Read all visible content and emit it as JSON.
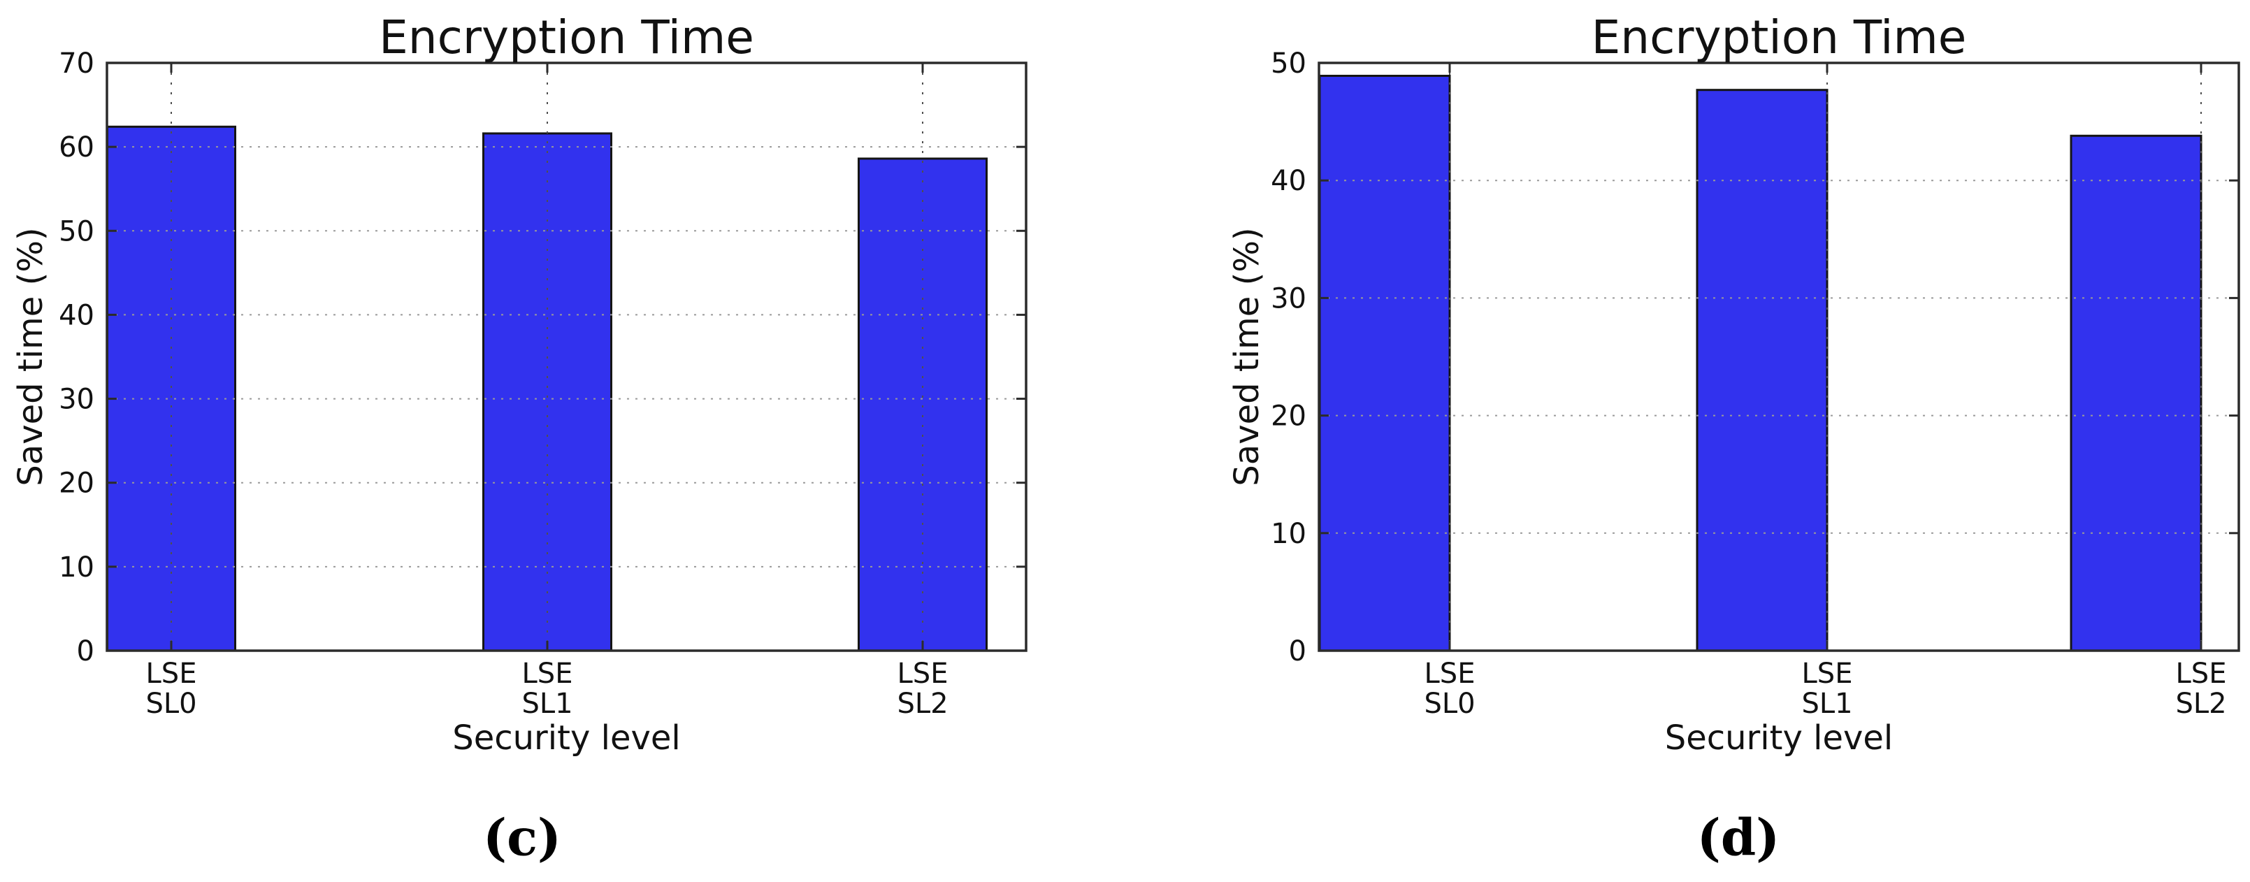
{
  "figure": {
    "background": "#ffffff",
    "panels": [
      "c",
      "d"
    ]
  },
  "chart_data": [
    {
      "type": "bar",
      "panel": "c",
      "caption": "(c)",
      "title": "Encryption Time",
      "xlabel": "Security level",
      "ylabel": "Saved time (%)",
      "categories": [
        [
          "LSE",
          "SL0"
        ],
        [
          "LSE",
          "SL1"
        ],
        [
          "LSE",
          "SL2"
        ]
      ],
      "values": [
        62.4,
        61.6,
        58.6
      ],
      "ylim": [
        0,
        70
      ],
      "yticks": [
        0,
        10,
        20,
        30,
        40,
        50,
        60,
        70
      ],
      "grid": true,
      "xtick_align": "center",
      "bar_color": "#3232ee",
      "bar_edge_color": "#151515"
    },
    {
      "type": "bar",
      "panel": "d",
      "caption": "(d)",
      "title": "Encryption Time",
      "xlabel": "Security level",
      "ylabel": "Saved time (%)",
      "categories": [
        [
          "LSE",
          "SL0"
        ],
        [
          "LSE",
          "SL1"
        ],
        [
          "LSE",
          "SL2"
        ]
      ],
      "values": [
        48.9,
        47.7,
        43.8
      ],
      "ylim": [
        0,
        50
      ],
      "yticks": [
        0,
        10,
        20,
        30,
        40,
        50
      ],
      "grid": true,
      "xtick_align": "edge",
      "bar_color": "#3232ee",
      "bar_edge_color": "#151515"
    }
  ]
}
